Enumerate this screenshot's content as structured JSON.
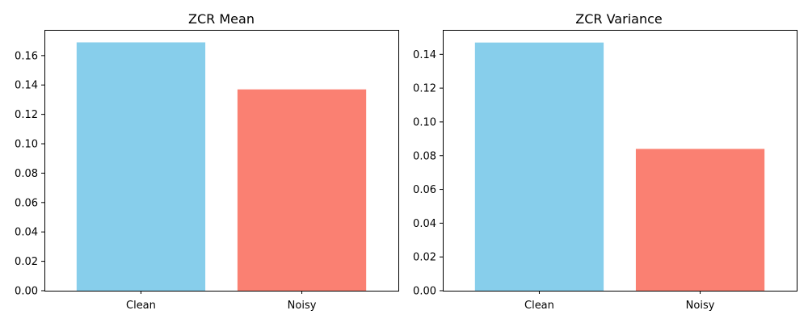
{
  "chart_data": [
    {
      "type": "bar",
      "title": "ZCR Mean",
      "categories": [
        "Clean",
        "Noisy"
      ],
      "values": [
        0.169,
        0.137
      ],
      "colors": [
        "#87ceeb",
        "#fa8072"
      ],
      "ylim": [
        0,
        0.1775
      ],
      "yticks": [
        0.0,
        0.02,
        0.04,
        0.06,
        0.08,
        0.1,
        0.12,
        0.14,
        0.16
      ],
      "ytick_labels": [
        "0.00",
        "0.02",
        "0.04",
        "0.06",
        "0.08",
        "0.10",
        "0.12",
        "0.14",
        "0.16"
      ],
      "xlabel": "",
      "ylabel": "",
      "grid": false
    },
    {
      "type": "bar",
      "title": "ZCR Variance",
      "categories": [
        "Clean",
        "Noisy"
      ],
      "values": [
        0.147,
        0.084
      ],
      "colors": [
        "#87ceeb",
        "#fa8072"
      ],
      "ylim": [
        0,
        0.1545
      ],
      "yticks": [
        0.0,
        0.02,
        0.04,
        0.06,
        0.08,
        0.1,
        0.12,
        0.14
      ],
      "ytick_labels": [
        "0.00",
        "0.02",
        "0.04",
        "0.06",
        "0.08",
        "0.10",
        "0.12",
        "0.14"
      ],
      "xlabel": "",
      "ylabel": "",
      "grid": false
    }
  ]
}
